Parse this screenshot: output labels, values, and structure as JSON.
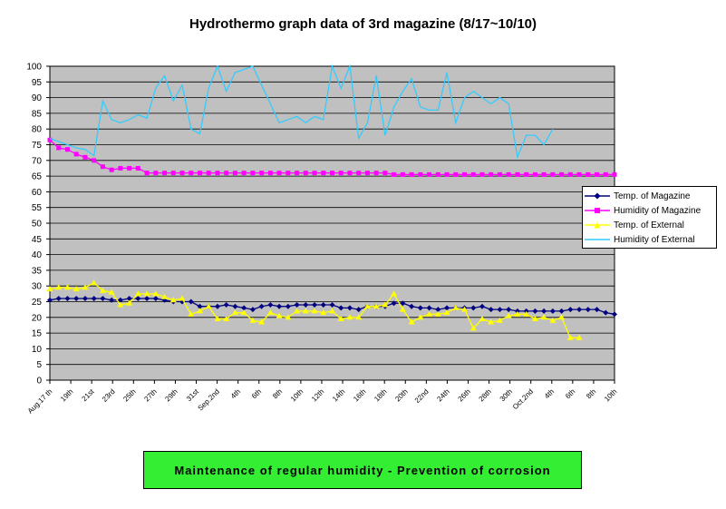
{
  "note": "Maintenance of regular humidity - Prevention of corrosion",
  "chart_data": {
    "type": "line",
    "title": "Hydrothermo graph data of 3rd magazine (8/17~10/10)",
    "xlabel": "",
    "ylabel": "",
    "ylim": [
      0,
      100
    ],
    "yticks": [
      0,
      5,
      10,
      15,
      20,
      25,
      30,
      35,
      40,
      45,
      50,
      55,
      60,
      65,
      70,
      75,
      80,
      85,
      90,
      95,
      100
    ],
    "grid": true,
    "legend_position": "right",
    "plot_background": "#c0c0c0",
    "x_tick_labels": [
      "Aug.17 th",
      "19th",
      "21st",
      "23rd",
      "25th",
      "27th",
      "29th",
      "31st",
      "Sep.2nd",
      "4th",
      "6th",
      "8th",
      "10th",
      "12th",
      "14th",
      "16th",
      "18th",
      "20th",
      "22nd",
      "24th",
      "26th",
      "28th",
      "30th",
      "Oct.2nd",
      "4th",
      "6th",
      "8th",
      "10th"
    ],
    "series": [
      {
        "name": "Temp. of Magazine",
        "color": "#000080",
        "marker": "diamond",
        "values": [
          25.5,
          26,
          26,
          26,
          26,
          26,
          26,
          25.5,
          25.5,
          26,
          26,
          26,
          26,
          25.5,
          25,
          25,
          25,
          23.5,
          23.5,
          23.5,
          24,
          23.5,
          23,
          22.5,
          23.5,
          24,
          23.5,
          23.5,
          24,
          24,
          24,
          24,
          24,
          23,
          23,
          22.5,
          23.5,
          23.5,
          23.5,
          24.5,
          24.5,
          23.5,
          23,
          23,
          22.5,
          23,
          23,
          23,
          23,
          23.5,
          22.5,
          22.5,
          22.5,
          22,
          22,
          22,
          22,
          22,
          22,
          22.5,
          22.5,
          22.5,
          22.5,
          21.5,
          21
        ]
      },
      {
        "name": "Humidity of Magazine",
        "color": "#ff00ff",
        "marker": "square",
        "values": [
          76.5,
          74,
          73.5,
          72,
          71,
          70,
          68,
          67,
          67.5,
          67.5,
          67.5,
          66,
          66,
          66,
          66,
          66,
          66,
          66,
          66,
          66,
          66,
          66,
          66,
          66,
          66,
          66,
          66,
          66,
          66,
          66,
          66,
          66,
          66,
          66,
          66,
          66,
          66,
          66,
          66,
          65.5,
          65.5,
          65.5,
          65.5,
          65.5,
          65.5,
          65.5,
          65.5,
          65.5,
          65.5,
          65.5,
          65.5,
          65.5,
          65.5,
          65.5,
          65.5,
          65.5,
          65.5,
          65.5,
          65.5,
          65.5,
          65.5,
          65.5,
          65.5,
          65.5,
          65.5
        ]
      },
      {
        "name": "Temp. of External",
        "color": "#ffff00",
        "marker": "triangle",
        "values": [
          29,
          29.5,
          29.5,
          29,
          29.5,
          31,
          28.5,
          28,
          24,
          24.5,
          27.5,
          27.5,
          27.5,
          26.5,
          25.5,
          26,
          21,
          22,
          23.5,
          19.5,
          19.5,
          21.5,
          21.5,
          19,
          18.5,
          21.5,
          20.5,
          20,
          22,
          22,
          22,
          21.5,
          22,
          19.5,
          20,
          20,
          23.5,
          23.5,
          24,
          27.5,
          22.5,
          18.5,
          20,
          21,
          21,
          21.5,
          23,
          22.5,
          16.5,
          19.5,
          18.5,
          19,
          20.5,
          21,
          21,
          19.5,
          20,
          19,
          20,
          13.5,
          13.5
        ]
      },
      {
        "name": "Humidity of External",
        "color": "#33ccff",
        "marker": "none",
        "values": [
          77,
          76,
          75,
          74,
          73.5,
          71.5,
          89,
          83,
          82,
          83,
          84.5,
          83.5,
          93,
          97,
          89,
          94,
          80,
          78.5,
          93,
          100,
          92,
          98,
          99,
          100,
          94,
          88,
          82,
          83,
          84,
          82,
          84,
          83,
          100,
          93,
          100,
          77,
          82,
          97,
          78,
          87,
          92,
          96,
          87,
          86,
          86,
          98,
          82,
          90,
          92,
          90,
          88,
          90,
          88,
          71,
          78,
          78,
          75,
          80
        ]
      }
    ]
  }
}
